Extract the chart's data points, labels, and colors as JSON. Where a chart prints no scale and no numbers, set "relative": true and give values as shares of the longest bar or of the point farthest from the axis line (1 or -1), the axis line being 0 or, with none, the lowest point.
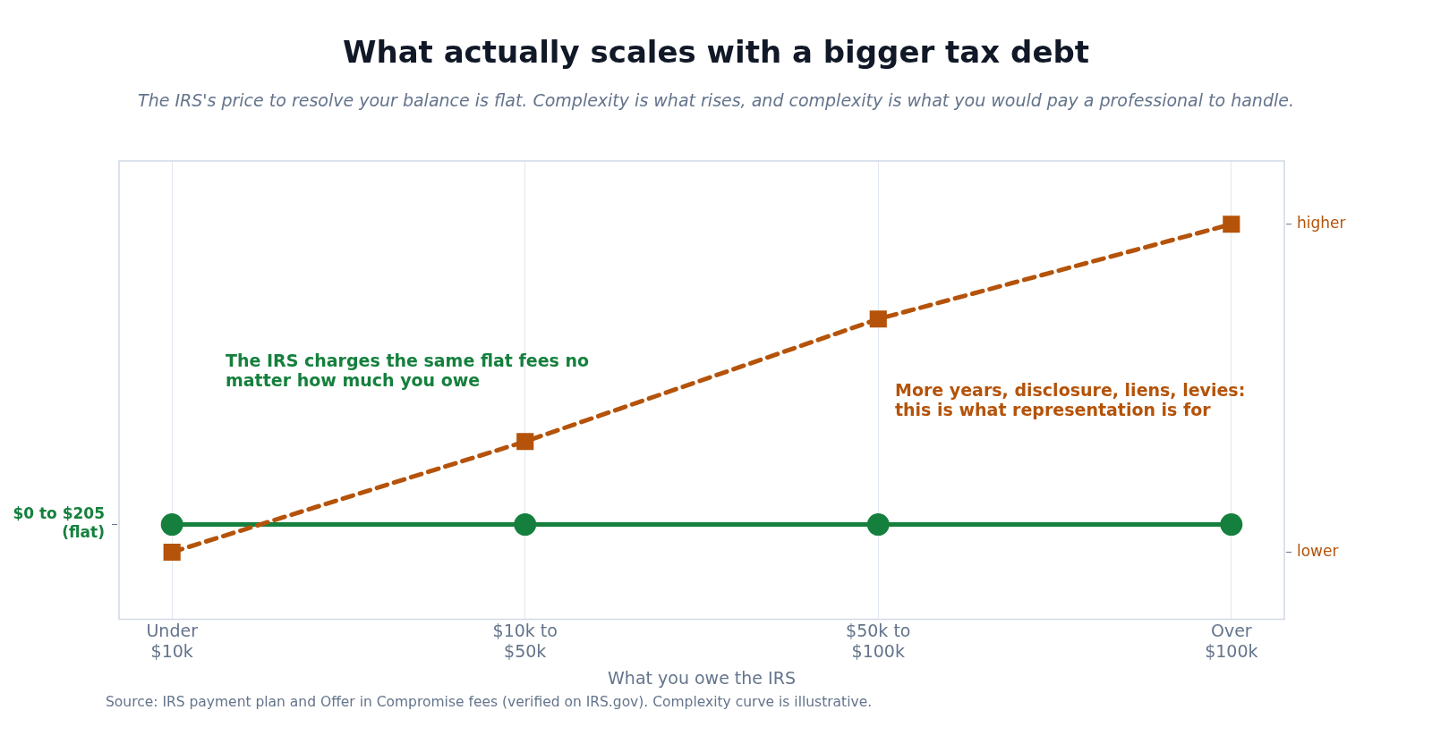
{
  "chart_data": {
    "type": "line",
    "title": "What actually scales with a bigger tax debt",
    "subtitle": "The IRS's price to resolve your balance is flat. Complexity is what rises, and complexity is what you would pay a professional to handle.",
    "xlabel": "What you owe the IRS",
    "categories": [
      "Under $10k",
      "$10k to $50k",
      "$50k to $100k",
      "Over $100k"
    ],
    "relative": true,
    "series": [
      {
        "color": "#15803d",
        "values": [
          0.24,
          0.24,
          0.24,
          0.24
        ],
        "marker": "circle",
        "line_style": "solid"
      },
      {
        "color": "#b45309",
        "values": [
          0.17,
          0.45,
          0.76,
          1
        ],
        "marker": "square",
        "line_style": "dashed"
      }
    ],
    "grid": "x",
    "legend": false,
    "annotations": [
      "$0 to $205 (flat)",
      "lower",
      "higher",
      "The IRS charges the same flat fees no matter how much you owe",
      "More years, disclosure, liens, levies: this is what representation is for",
      "Source: IRS payment plan and Offer in Compromise fees (verified on IRS.gov). Complexity curve is illustrative."
    ]
  }
}
